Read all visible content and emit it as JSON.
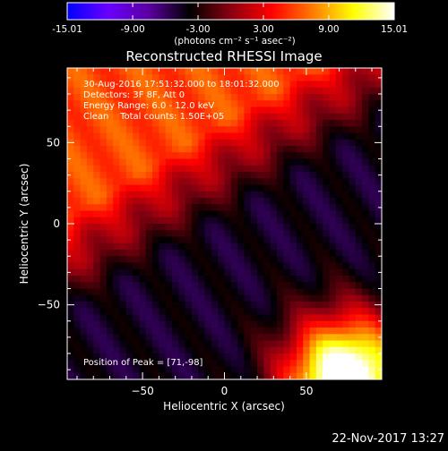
{
  "colorbar": {
    "tick_labels": [
      "-15.01",
      "-9.00",
      "-3.00",
      "3.00",
      "9.00",
      "15.01"
    ],
    "tick_values": [
      -15.01,
      -9.0,
      -3.0,
      3.0,
      9.0,
      15.01
    ],
    "range": [
      -15.01,
      15.01
    ],
    "units_label": "(photons cm⁻² s⁻¹ asec⁻²)",
    "colormap": [
      "#0000ff",
      "#6a00ff",
      "#5a00a0",
      "#000000",
      "#8a0010",
      "#ff0000",
      "#ff7a00",
      "#ffff00",
      "#ffffff"
    ]
  },
  "chart_data": {
    "type": "heatmap",
    "title": "Reconstructed RHESSI Image",
    "xlabel": "Heliocentric X (arcsec)",
    "ylabel": "Heliocentric Y (arcsec)",
    "xlim": [
      -96,
      96
    ],
    "ylim": [
      -96,
      96
    ],
    "xticks": [
      -50,
      0,
      50
    ],
    "yticks": [
      50,
      0,
      -50
    ],
    "xtick_labels": [
      "−50",
      "0",
      "50"
    ],
    "ytick_labels": [
      "50",
      "0",
      "−50"
    ],
    "annotations": [
      "30-Aug-2016 17:51:32.000 to 18:01:32.000",
      "Detectors: 3F 8F, Att 0",
      "Energy Range: 6.0 - 12.0 keV",
      "Clean    Total counts: 1.50E+05"
    ],
    "peak_label": "Position of Peak = [71,-98]",
    "peak_position": [
      71,
      -98
    ]
  },
  "footer": {
    "timestamp": "22-Nov-2017 13:27"
  }
}
